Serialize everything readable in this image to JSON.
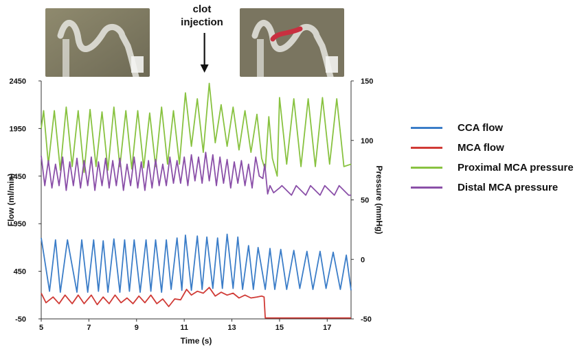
{
  "chart_data": {
    "type": "line",
    "xlabel": "Time (s)",
    "ylabel_left": "Flow  (ml/min)",
    "ylabel_right": "Pressure (mmHg)",
    "xlim": [
      5,
      18
    ],
    "ylim_left": [
      -50,
      2450
    ],
    "ylim_right": [
      -50,
      150
    ],
    "x_ticks": [
      5,
      7,
      9,
      11,
      13,
      15,
      17
    ],
    "y_ticks_left": [
      -50,
      450,
      950,
      1450,
      1950,
      2450
    ],
    "y_ticks_right": [
      -50,
      0,
      50,
      100,
      150
    ],
    "annotation": [
      "clot",
      "injection"
    ],
    "annotation_x": 11.85,
    "series": [
      {
        "name": "CCA flow",
        "axis": "left",
        "color": "#3b7dc8",
        "x": [
          5.0,
          5.35,
          5.6,
          5.8,
          6.1,
          6.5,
          6.7,
          6.95,
          7.2,
          7.4,
          7.6,
          7.8,
          8.05,
          8.3,
          8.5,
          8.7,
          8.9,
          9.15,
          9.4,
          9.6,
          9.8,
          10.05,
          10.25,
          10.45,
          10.7,
          10.9,
          11.05,
          11.3,
          11.55,
          11.75,
          11.95,
          12.2,
          12.4,
          12.6,
          12.8,
          13.05,
          13.25,
          13.45,
          13.7,
          13.9,
          14.1,
          14.4,
          14.6,
          14.8,
          15.05,
          15.3,
          15.6,
          15.85,
          16.15,
          16.4,
          16.7,
          16.95,
          17.25,
          17.55,
          17.8,
          18.0
        ],
        "y": [
          800,
          240,
          780,
          230,
          780,
          230,
          780,
          230,
          780,
          240,
          770,
          230,
          790,
          230,
          780,
          240,
          780,
          230,
          780,
          240,
          780,
          230,
          780,
          260,
          800,
          250,
          830,
          250,
          820,
          260,
          810,
          270,
          800,
          270,
          840,
          270,
          810,
          260,
          720,
          260,
          700,
          260,
          690,
          260,
          680,
          260,
          670,
          270,
          660,
          260,
          660,
          270,
          650,
          260,
          620,
          250
        ]
      },
      {
        "name": "MCA flow",
        "axis": "left",
        "color": "#d03a35",
        "x": [
          5.0,
          5.2,
          5.5,
          5.75,
          6.0,
          6.3,
          6.55,
          6.8,
          7.1,
          7.35,
          7.6,
          7.85,
          8.1,
          8.35,
          8.6,
          8.85,
          9.1,
          9.35,
          9.6,
          9.85,
          10.1,
          10.35,
          10.6,
          10.85,
          11.1,
          11.3,
          11.55,
          11.8,
          12.05,
          12.3,
          12.55,
          12.8,
          13.05,
          13.3,
          13.55,
          13.8,
          14.05,
          14.25,
          14.35,
          14.4,
          15.0,
          16.0,
          17.0,
          18.0
        ],
        "y": [
          220,
          120,
          180,
          110,
          200,
          110,
          200,
          110,
          200,
          100,
          180,
          110,
          200,
          120,
          170,
          110,
          190,
          120,
          200,
          110,
          160,
          80,
          160,
          150,
          260,
          200,
          240,
          220,
          280,
          190,
          230,
          200,
          220,
          170,
          200,
          170,
          180,
          190,
          180,
          -40,
          -40,
          -40,
          -40,
          -40
        ]
      },
      {
        "name": "Proximal MCA pressure",
        "axis": "right",
        "color": "#88c240",
        "x": [
          5.0,
          5.1,
          5.3,
          5.55,
          5.8,
          6.05,
          6.3,
          6.55,
          6.8,
          7.05,
          7.3,
          7.55,
          7.8,
          8.05,
          8.3,
          8.55,
          8.8,
          9.05,
          9.3,
          9.55,
          9.8,
          10.05,
          10.3,
          10.55,
          10.8,
          11.05,
          11.3,
          11.55,
          11.8,
          12.05,
          12.3,
          12.55,
          12.8,
          13.05,
          13.3,
          13.55,
          13.8,
          14.05,
          14.25,
          14.4,
          14.55,
          14.7,
          14.9,
          15.0,
          15.3,
          15.6,
          15.9,
          16.2,
          16.5,
          16.8,
          17.1,
          17.4,
          17.7,
          18.0
        ],
        "y": [
          110,
          125,
          80,
          125,
          75,
          128,
          78,
          125,
          73,
          126,
          78,
          124,
          75,
          128,
          78,
          125,
          76,
          125,
          77,
          123,
          78,
          128,
          80,
          125,
          80,
          140,
          95,
          135,
          90,
          148,
          98,
          130,
          95,
          128,
          92,
          125,
          90,
          122,
          85,
          75,
          120,
          85,
          70,
          136,
          80,
          135,
          78,
          135,
          78,
          136,
          80,
          135,
          78,
          80
        ]
      },
      {
        "name": "Distal MCA pressure",
        "axis": "right",
        "color": "#8a4fa8",
        "x": [
          5.0,
          5.15,
          5.3,
          5.45,
          5.6,
          5.75,
          5.9,
          6.05,
          6.2,
          6.35,
          6.5,
          6.65,
          6.8,
          6.95,
          7.1,
          7.25,
          7.4,
          7.55,
          7.7,
          7.85,
          8.0,
          8.15,
          8.3,
          8.45,
          8.6,
          8.75,
          8.9,
          9.05,
          9.2,
          9.35,
          9.5,
          9.65,
          9.8,
          9.95,
          10.1,
          10.25,
          10.4,
          10.55,
          10.7,
          10.85,
          11.0,
          11.15,
          11.3,
          11.45,
          11.6,
          11.75,
          11.9,
          12.05,
          12.2,
          12.35,
          12.5,
          12.65,
          12.8,
          12.95,
          13.1,
          13.25,
          13.4,
          13.55,
          13.7,
          13.85,
          14.0,
          14.15,
          14.3,
          14.38,
          14.5,
          14.6,
          14.75,
          15.0,
          15.1,
          15.5,
          15.7,
          16.1,
          16.3,
          16.7,
          16.9,
          17.3,
          17.5,
          17.9,
          18.0
        ],
        "y": [
          87,
          62,
          83,
          60,
          80,
          62,
          86,
          58,
          82,
          62,
          85,
          60,
          83,
          62,
          86,
          58,
          82,
          62,
          85,
          60,
          83,
          62,
          85,
          58,
          80,
          62,
          86,
          60,
          82,
          58,
          83,
          60,
          84,
          62,
          80,
          62,
          86,
          64,
          83,
          64,
          86,
          62,
          88,
          66,
          86,
          64,
          90,
          66,
          88,
          62,
          86,
          64,
          84,
          60,
          82,
          64,
          83,
          62,
          80,
          60,
          86,
          70,
          68,
          80,
          55,
          62,
          56,
          60,
          62,
          54,
          62,
          54,
          62,
          54,
          62,
          54,
          62,
          54,
          54
        ]
      }
    ]
  },
  "legend": {
    "items": [
      {
        "label": "CCA flow",
        "color": "#3b7dc8"
      },
      {
        "label": "MCA flow",
        "color": "#d03a35"
      },
      {
        "label": "Proximal MCA pressure",
        "color": "#88c240"
      },
      {
        "label": "Distal MCA pressure",
        "color": "#8a4fa8"
      }
    ]
  }
}
